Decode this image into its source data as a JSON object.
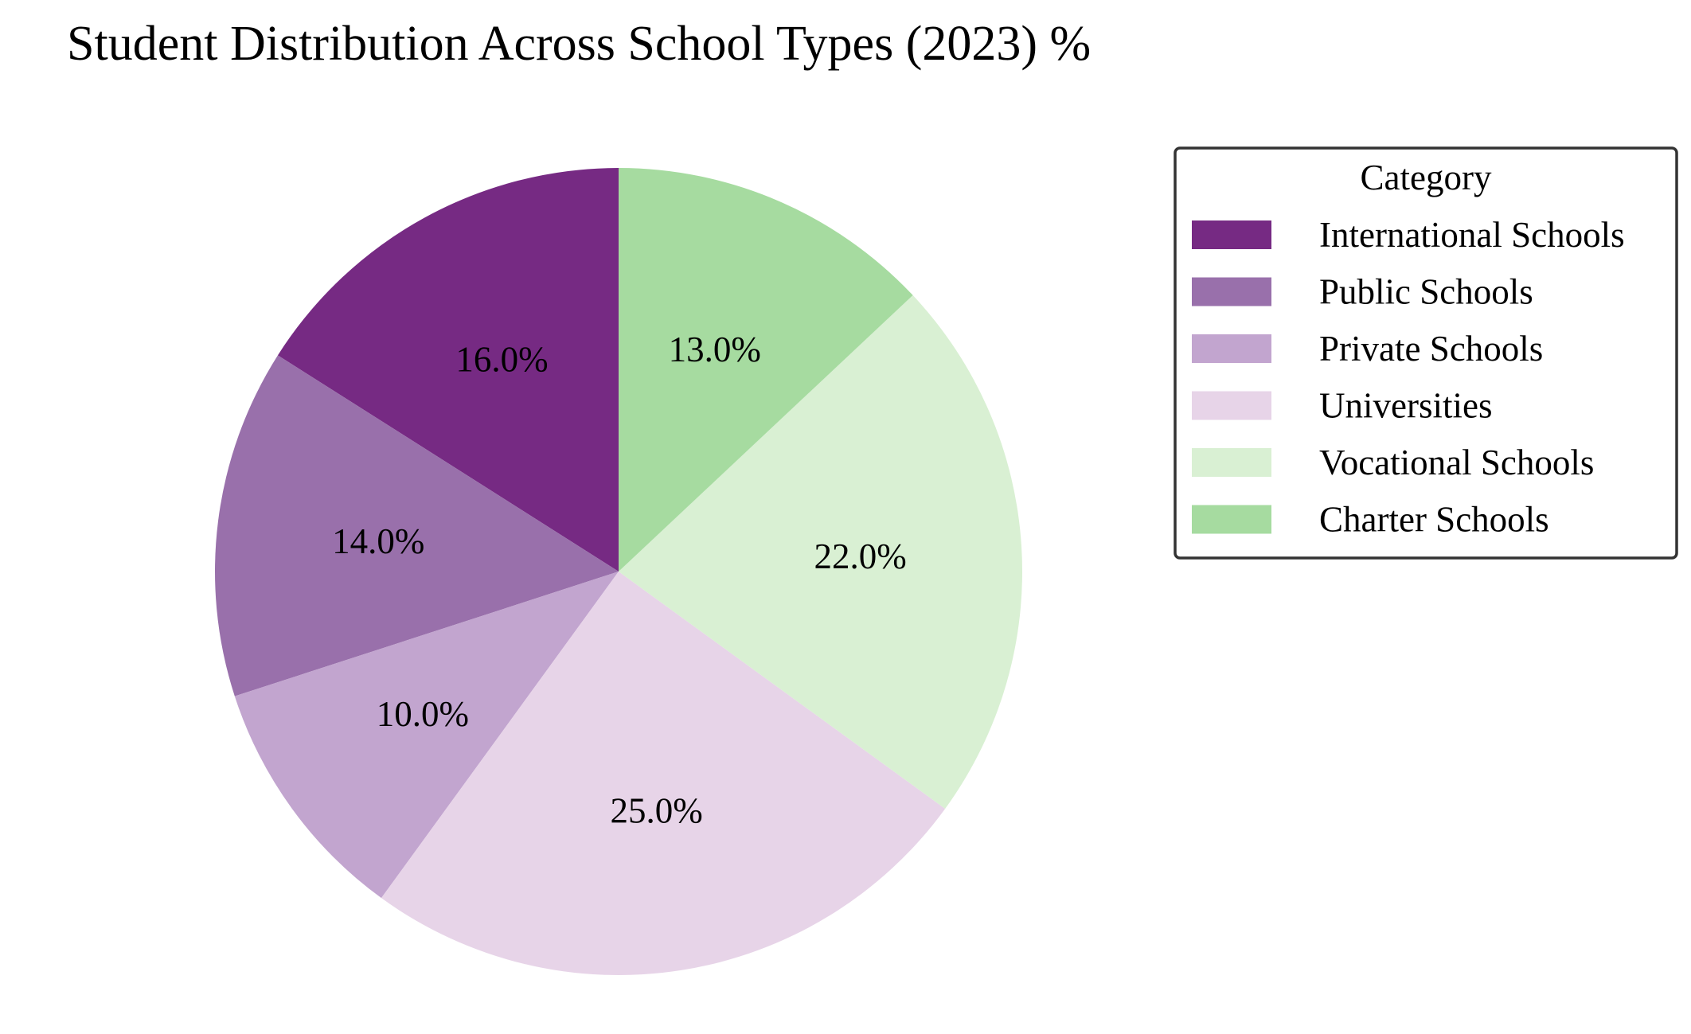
{
  "chart_data": {
    "type": "pie",
    "title": "Student Distribution Across School Types (2023) %",
    "legend": {
      "title": "Category",
      "placement": "right"
    },
    "slices": [
      {
        "label": "International Schools",
        "value": 16.0,
        "display": "16.0%",
        "color": "#762A83"
      },
      {
        "label": "Public Schools",
        "value": 14.0,
        "display": "14.0%",
        "color": "#9970AB"
      },
      {
        "label": "Private Schools",
        "value": 10.0,
        "display": "10.0%",
        "color": "#C2A5CF"
      },
      {
        "label": "Universities",
        "value": 25.0,
        "display": "25.0%",
        "color": "#E7D4E8"
      },
      {
        "label": "Vocational Schools",
        "value": 22.0,
        "display": "22.0%",
        "color": "#D9F0D3"
      },
      {
        "label": "Charter Schools",
        "value": 13.0,
        "display": "13.0%",
        "color": "#A6DBA0"
      }
    ],
    "start_angle_deg": 90,
    "direction": "counterclockwise"
  }
}
